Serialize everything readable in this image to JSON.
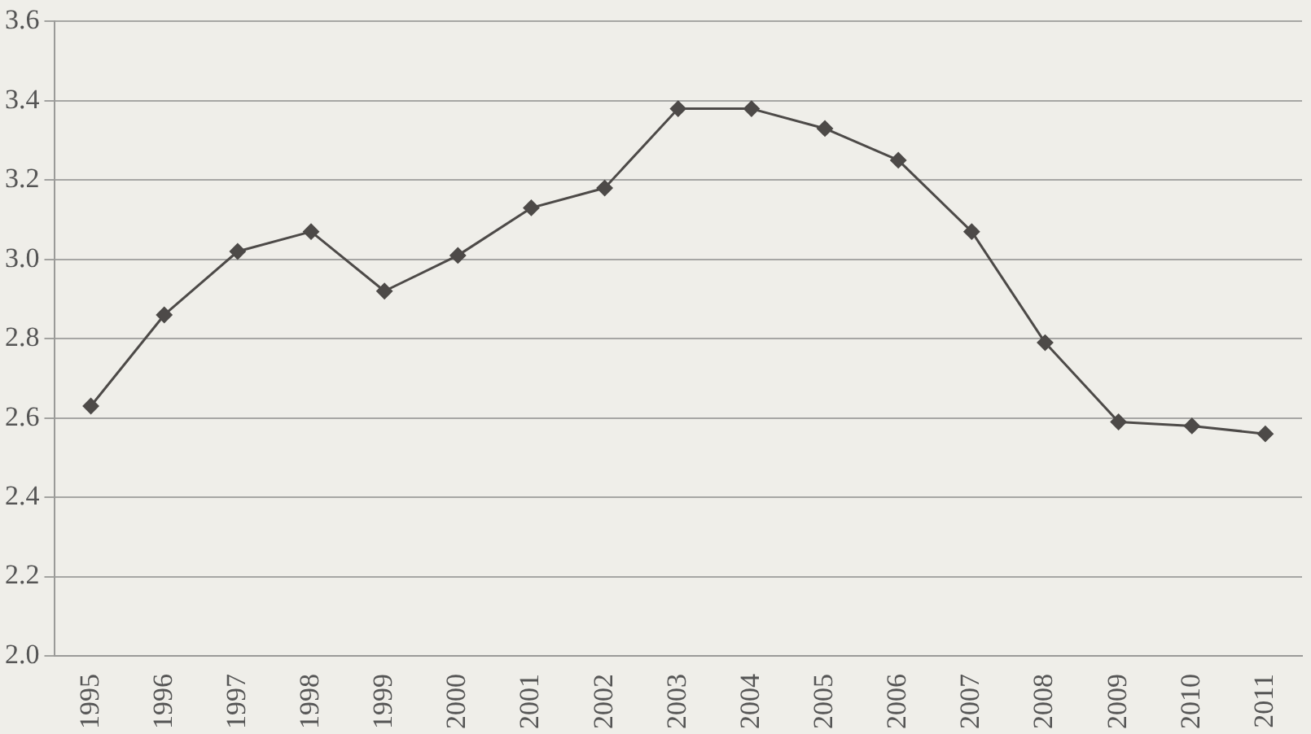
{
  "chart_data": {
    "type": "line",
    "categories": [
      "1995",
      "1996",
      "1997",
      "1998",
      "1999",
      "2000",
      "2001",
      "2002",
      "2003",
      "2004",
      "2005",
      "2006",
      "2007",
      "2008",
      "2009",
      "2010",
      "2011"
    ],
    "series": [
      {
        "color": "#4d4a48",
        "values": [
          2.63,
          2.86,
          3.02,
          3.07,
          2.92,
          3.01,
          3.13,
          3.18,
          3.38,
          3.38,
          3.33,
          3.25,
          3.07,
          2.79,
          2.59,
          2.58,
          2.56
        ]
      }
    ],
    "ylim": [
      2.0,
      3.6
    ],
    "yticks": [
      {
        "value": 2.0,
        "label": "2.0"
      },
      2.2,
      2.4,
      2.6,
      2.8,
      {
        "value": 3.0,
        "label": "3.0"
      },
      3.2,
      3.4,
      3.6
    ],
    "grid": "y",
    "legend": false,
    "marker": "diamond",
    "line_style": "solid"
  }
}
